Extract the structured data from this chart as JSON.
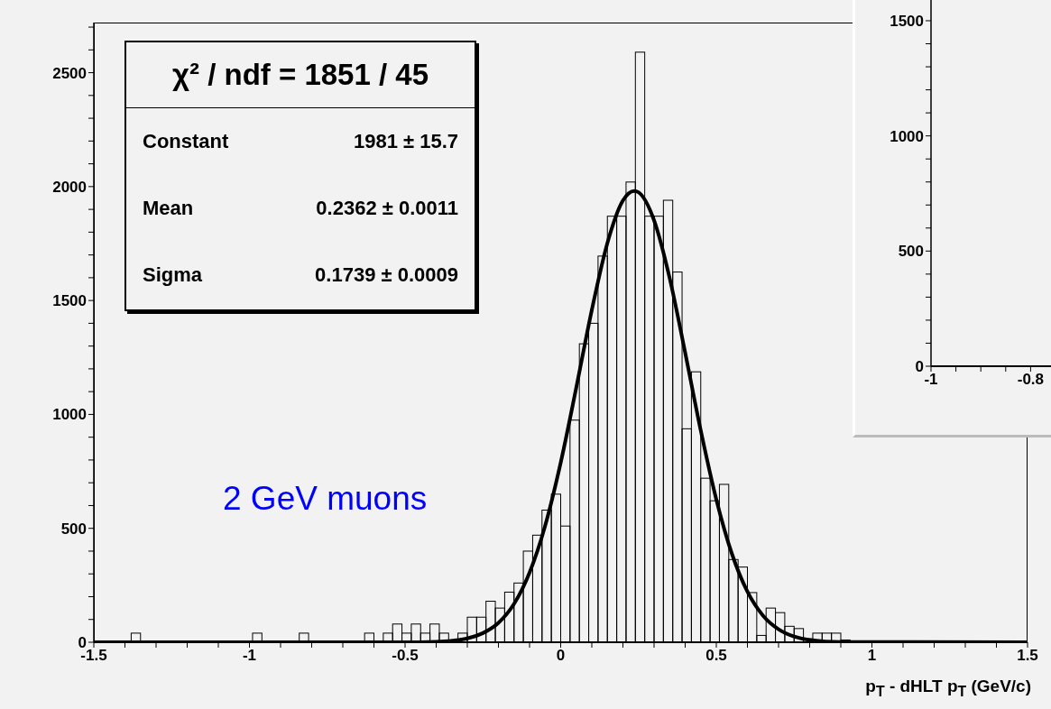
{
  "chart_data": [
    {
      "type": "histogram",
      "xlabel": "p$_{T}$ - dHLT p$_{T}$ (GeV/c)",
      "color": "#000000",
      "bins": [
        -1.5,
        -1.47,
        -1.44,
        -1.41,
        -1.38,
        -1.35,
        -1.32,
        -1.29,
        -1.26,
        -1.23,
        -1.2,
        -1.17,
        -1.14,
        -1.11,
        -1.08,
        -1.05,
        -1.02,
        -0.99,
        -0.96,
        -0.93,
        -0.9,
        -0.87,
        -0.84,
        -0.81,
        -0.78,
        -0.75,
        -0.72,
        -0.69,
        -0.66,
        -0.63,
        -0.6,
        -0.57,
        -0.54,
        -0.51,
        -0.48,
        -0.45,
        -0.42,
        -0.39,
        -0.36,
        -0.33,
        -0.3,
        -0.27,
        -0.24,
        -0.21,
        -0.18,
        -0.15,
        -0.12,
        -0.09,
        -0.06,
        -0.03,
        0,
        0.03,
        0.06,
        0.09,
        0.12,
        0.15,
        0.18,
        0.21,
        0.24,
        0.27,
        0.3,
        0.33,
        0.36,
        0.39,
        0.42,
        0.45,
        0.48,
        0.51,
        0.54,
        0.57,
        0.6,
        0.63,
        0.66,
        0.69,
        0.72,
        0.75,
        0.78,
        0.81,
        0.84,
        0.87,
        0.9,
        0.93,
        0.96,
        0.99,
        1.02,
        1.05,
        1.08,
        1.11,
        1.14,
        1.17,
        1.2,
        1.23,
        1.26,
        1.29,
        1.32,
        1.35,
        1.38,
        1.41,
        1.44,
        1.47,
        1.5
      ],
      "values": [
        0,
        0,
        0,
        0,
        40,
        0,
        0,
        0,
        0,
        0,
        0,
        0,
        0,
        0,
        0,
        0,
        0,
        40,
        0,
        0,
        0,
        0,
        40,
        0,
        0,
        0,
        0,
        0,
        0,
        40,
        0,
        40,
        80,
        40,
        80,
        40,
        80,
        40,
        null,
        40,
        110,
        110,
        180,
        150,
        220,
        260,
        400,
        470,
        580,
        650,
        510,
        975,
        1310,
        1400,
        1695,
        1870,
        1870,
        2020,
        2590,
        1870,
        1870,
        1940,
        1625,
        937,
        1187,
        720,
        621,
        693,
        363,
        330,
        218,
        30,
        150,
        130,
        70,
        60,
        15,
        40,
        40,
        40,
        10,
        0,
        0,
        0,
        0,
        0,
        0,
        0,
        0,
        0,
        0,
        0,
        0,
        0,
        0,
        0,
        0,
        0,
        0,
        0
      ],
      "series": [
        {
          "type": "line",
          "color": "#000000",
          "x": [
            -1.5,
            -0.5,
            -0.4,
            -0.3,
            -0.25,
            -0.2,
            -0.15,
            -0.1,
            -0.05,
            0,
            0.05,
            0.1,
            0.15,
            0.2,
            0.2362,
            0.25,
            0.3,
            0.35,
            0.4,
            0.45,
            0.5,
            0.55,
            0.6,
            0.65,
            0.7,
            0.75,
            0.8,
            0.9,
            1.5
          ],
          "values": [
            0,
            0,
            2,
            17,
            40,
            85,
            168,
            306,
            511,
            788,
            1117,
            1458,
            1752,
            1939,
            1981,
            1975,
            1852,
            1599,
            1271,
            930,
            627,
            389,
            222,
            117,
            57,
            25,
            10,
            1,
            0
          ]
        }
      ],
      "xlim": [
        -1.5,
        1.5
      ],
      "ylim": [
        0,
        2720
      ],
      "xticks": [
        -1.5,
        {
          "value": -1.4,
          "label": null
        },
        {
          "value": -1.3,
          "label": null
        },
        {
          "value": -1.2,
          "label": null
        },
        {
          "value": -1.1,
          "label": null
        },
        -1,
        {
          "value": -0.9,
          "label": null
        },
        {
          "value": -0.8,
          "label": null
        },
        {
          "value": -0.7,
          "label": null
        },
        {
          "value": -0.6,
          "label": null
        },
        -0.5,
        {
          "value": -0.4,
          "label": null
        },
        {
          "value": -0.3,
          "label": null
        },
        {
          "value": -0.2,
          "label": null
        },
        {
          "value": -0.1,
          "label": null
        },
        0,
        {
          "value": 0.1,
          "label": null
        },
        {
          "value": 0.2,
          "label": null
        },
        {
          "value": 0.3,
          "label": null
        },
        {
          "value": 0.4,
          "label": null
        },
        0.5,
        {
          "value": 0.6,
          "label": null
        },
        {
          "value": 0.7,
          "label": null
        },
        {
          "value": 0.8,
          "label": null
        },
        {
          "value": 0.9,
          "label": null
        },
        1,
        {
          "value": 1.1,
          "label": null
        },
        {
          "value": 1.2,
          "label": null
        },
        {
          "value": 1.3,
          "label": null
        },
        {
          "value": 1.4,
          "label": null
        },
        1.5
      ],
      "yticks": [
        0,
        {
          "value": 100,
          "label": null
        },
        {
          "value": 200,
          "label": null
        },
        {
          "value": 300,
          "label": null
        },
        {
          "value": 400,
          "label": null
        },
        500,
        {
          "value": 600,
          "label": null
        },
        {
          "value": 700,
          "label": null
        },
        {
          "value": 800,
          "label": null
        },
        {
          "value": 900,
          "label": null
        },
        1000,
        {
          "value": 1100,
          "label": null
        },
        {
          "value": 1200,
          "label": null
        },
        {
          "value": 1300,
          "label": null
        },
        {
          "value": 1400,
          "label": null
        },
        1500,
        {
          "value": 1600,
          "label": null
        },
        {
          "value": 1700,
          "label": null
        },
        {
          "value": 1800,
          "label": null
        },
        {
          "value": 1900,
          "label": null
        },
        2000,
        {
          "value": 2100,
          "label": null
        },
        {
          "value": 2200,
          "label": null
        },
        {
          "value": 2300,
          "label": null
        },
        {
          "value": 2400,
          "label": null
        },
        2500,
        {
          "value": 2600,
          "label": null
        },
        {
          "value": 2700,
          "label": null
        }
      ],
      "annotations": [
        "χ² / ndf = 1851 / 45",
        "Constant 1981 ± 15.7",
        "Mean 0.2362 ± 0.0011",
        "Sigma 0.1739 ± 0.0009",
        "2 GeV muons"
      ]
    },
    {
      "type": "histogram",
      "xlim": [
        -1,
        -0.75
      ],
      "ylim": [
        0,
        1590
      ],
      "xticks": [
        -1,
        {
          "value": -0.95,
          "label": null
        },
        {
          "value": -0.9,
          "label": null
        },
        {
          "value": -0.85,
          "label": null
        },
        -0.8
      ],
      "yticks": [
        0,
        {
          "value": 100,
          "label": null
        },
        {
          "value": 200,
          "label": null
        },
        {
          "value": 300,
          "label": null
        },
        {
          "value": 400,
          "label": null
        },
        500,
        {
          "value": 600,
          "label": null
        },
        {
          "value": 700,
          "label": null
        },
        {
          "value": 800,
          "label": null
        },
        {
          "value": 900,
          "label": null
        },
        1000,
        {
          "value": 1100,
          "label": null
        },
        {
          "value": 1200,
          "label": null
        },
        {
          "value": 1300,
          "label": null
        },
        {
          "value": 1400,
          "label": null
        },
        1500
      ]
    }
  ]
}
